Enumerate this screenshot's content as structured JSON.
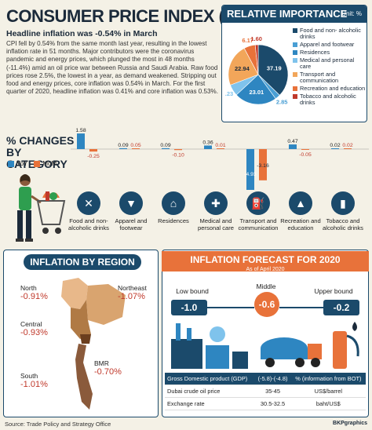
{
  "header": {
    "title": "CONSUMER PRICE INDEX (CPI)",
    "headline": "Headline inflation was -0.54% in March",
    "body": "CPI fell by 0.54% from the same month last year, resulting in the lowest inflation rate in 51 months. Major contributors were the coronavirus pandemic and energy prices, which plunged the most in 48 months (-11.4%) amid an oil price war between Russia and Saudi Arabia. Raw food prices rose 2.5%, the lowest in a year, as demand weakened. Stripping out food and energy prices, core inflation was 0.54% in March. For the first quarter of 2020, headline inflation was 0.41% and core inflation was 0.53%."
  },
  "relative_importance": {
    "title": "RELATIVE IMPORTANCE",
    "unit": "Unit: %",
    "slices": [
      {
        "label": "Food and non- alcoholic drinks",
        "value": "37.19",
        "color": "#1b4a6b"
      },
      {
        "label": "Apparel and footwear",
        "value": "2.85",
        "color": "#4a9fd4"
      },
      {
        "label": "Residences",
        "value": "23.01",
        "color": "#2e86c1"
      },
      {
        "label": "Medical and personal care",
        "value": "6.23",
        "color": "#7fc3ec"
      },
      {
        "label": "Transport and communication",
        "value": "22.94",
        "color": "#f2a65a"
      },
      {
        "label": "Recreation and education",
        "value": "6.17",
        "color": "#e8723a"
      },
      {
        "label": "Tobacco and alcoholic drinks",
        "value": "1.60",
        "color": "#c0392b"
      }
    ]
  },
  "changes": {
    "title_line1": "% CHANGES",
    "title_line2": "BY CATEGORY",
    "legend_yoy": "YoY",
    "legend_mom": "MoM",
    "yoy_color": "#2e86c1",
    "mom_color": "#e8723a"
  },
  "chart_data": {
    "type": "bar",
    "title": "% CHANGES BY CATEGORY",
    "categories": [
      "Food and non-alcoholic drinks",
      "Apparel and footwear",
      "Residences",
      "Medical and personal care",
      "Transport and communication",
      "Recreation and education",
      "Tobacco and alcoholic drinks"
    ],
    "series": [
      {
        "name": "YoY",
        "values": [
          1.58,
          0.09,
          0.09,
          0.36,
          -4.93,
          0.47,
          0.02
        ]
      },
      {
        "name": "MoM",
        "values": [
          -0.25,
          0.05,
          -0.1,
          0.01,
          -3.16,
          -0.05,
          0.02
        ]
      }
    ],
    "value_labels": {
      "YoY": [
        "1.58",
        "0.09",
        "0.09",
        "0.36",
        "-4.93",
        "0.47",
        "0.02"
      ],
      "MoM": [
        "-0.25",
        "0.05",
        "-0.10",
        "0.01",
        "-3.16",
        "-0.05",
        "0.02"
      ]
    },
    "ylim": [
      -5,
      1.6
    ]
  },
  "category_labels": [
    "Food and non-alcoholic drinks",
    "Apparel and footwear",
    "Residences",
    "Medical and personal care",
    "Transport and communication",
    "Recreation and education",
    "Tobacco and alcoholic drinks"
  ],
  "category_icons": [
    "cutlery-icon",
    "tshirt-icon",
    "house-icon",
    "medicine-icon",
    "fuel-pump-icon",
    "graduation-cap-icon",
    "bottle-icon"
  ],
  "regions": {
    "title": "INFLATION BY REGION",
    "items": [
      {
        "name": "North",
        "value": "-0.91%"
      },
      {
        "name": "Northeast",
        "value": "-1.07%"
      },
      {
        "name": "Central",
        "value": "-0.93%"
      },
      {
        "name": "BMR",
        "value": "-0.70%"
      },
      {
        "name": "South",
        "value": "-1.01%"
      }
    ]
  },
  "forecast": {
    "title": "INFLATION FORECAST FOR 2020",
    "subtitle": "As of April 2020",
    "lower_label": "Low bound",
    "lower_value": "-1.0",
    "middle_label": "Middle",
    "middle_value": "-0.6",
    "upper_label": "Upper bound",
    "upper_value": "-0.2",
    "table": [
      [
        "Gross Domestic product (GDP)",
        "(-5.8)-(-4.8)",
        "% (information from BOT)"
      ],
      [
        "Dubai crude oil price",
        "35-45",
        "US$/barrel"
      ],
      [
        "Exchange rate",
        "30.5-32.5",
        "baht/US$"
      ]
    ]
  },
  "footer": {
    "source": "Source: Trade Policy and Strategy Office",
    "credit": "BKPgraphics"
  }
}
